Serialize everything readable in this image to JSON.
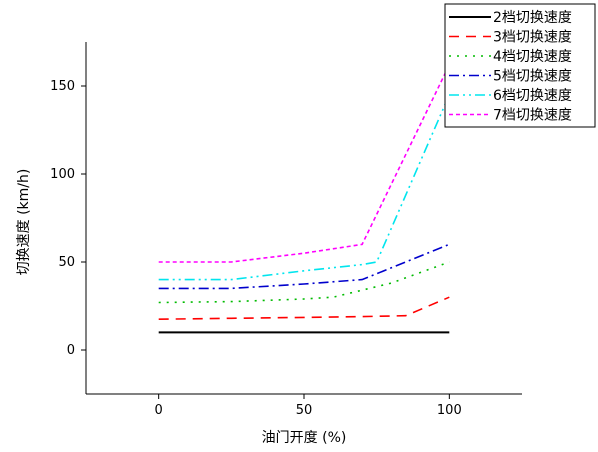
{
  "chart_data": {
    "type": "line",
    "title": "",
    "xlabel": "油门开度 (%)",
    "ylabel": "切换速度 (km/h)",
    "xlim": [
      -25,
      125
    ],
    "ylim": [
      -25,
      175
    ],
    "xticks": [
      0,
      50,
      100
    ],
    "yticks": [
      0,
      50,
      100,
      150
    ],
    "grid": false,
    "legend_position": "top-right",
    "series": [
      {
        "name": "2档切换速度",
        "color": "#000000",
        "dash": "solid",
        "x": [
          0,
          100
        ],
        "y": [
          10,
          10
        ]
      },
      {
        "name": "3档切换速度",
        "color": "#ff0000",
        "dash": "dash",
        "x": [
          0,
          25,
          50,
          70,
          85,
          100
        ],
        "y": [
          17.5,
          18,
          18.5,
          19,
          19.5,
          30
        ]
      },
      {
        "name": "4档切换速度",
        "color": "#00bb00",
        "dash": "dot",
        "x": [
          0,
          25,
          50,
          60,
          80,
          100
        ],
        "y": [
          27,
          27.5,
          29,
          30,
          38,
          50
        ]
      },
      {
        "name": "5档切换速度",
        "color": "#0000cc",
        "dash": "dashdot",
        "x": [
          0,
          25,
          50,
          70,
          100
        ],
        "y": [
          35,
          35,
          37.5,
          40,
          60
        ]
      },
      {
        "name": "6档切换速度",
        "color": "#00e5ee",
        "dash": "dashdotdot",
        "x": [
          0,
          25,
          50,
          70,
          75,
          100
        ],
        "y": [
          40,
          40,
          45,
          48.5,
          50,
          145
        ]
      },
      {
        "name": "7档切换速度",
        "color": "#ff00ff",
        "dash": "shortdash",
        "x": [
          0,
          25,
          50,
          70,
          100
        ],
        "y": [
          50,
          50,
          55,
          60,
          162
        ]
      }
    ]
  }
}
